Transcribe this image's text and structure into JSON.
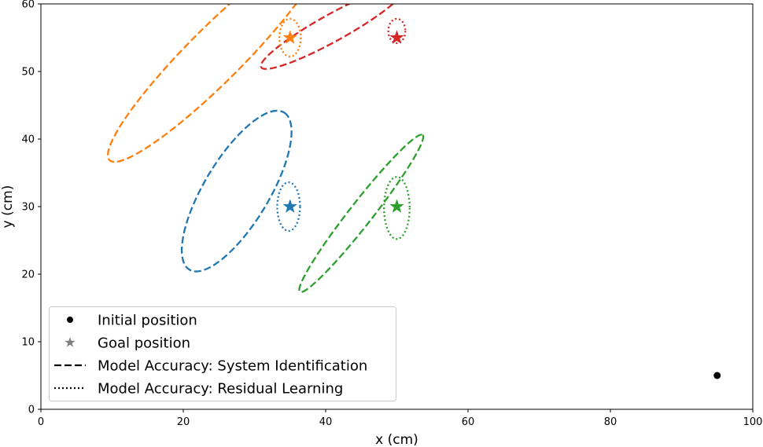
{
  "chart_data": {
    "type": "scatter",
    "title": "",
    "xlabel": "x (cm)",
    "ylabel": "y (cm)",
    "xlim": [
      0,
      100
    ],
    "ylim": [
      0,
      60
    ],
    "xticks": [
      0,
      20,
      40,
      60,
      80,
      100
    ],
    "yticks": [
      0,
      10,
      20,
      30,
      40,
      50,
      60
    ],
    "grid": false,
    "legend_position": "lower-left",
    "initial_position": {
      "x": 95,
      "y": 5,
      "color": "#000000"
    },
    "goals": [
      {
        "name": "goal-blue",
        "x": 35,
        "y": 30,
        "color": "#1f77b4"
      },
      {
        "name": "goal-orange",
        "x": 35,
        "y": 55,
        "color": "#ff7f0e"
      },
      {
        "name": "goal-green",
        "x": 50,
        "y": 30,
        "color": "#2ca02c"
      },
      {
        "name": "goal-red",
        "x": 50,
        "y": 55,
        "color": "#d62728"
      }
    ],
    "ellipses": [
      {
        "name": "sysid-blue",
        "style": "dashed",
        "color": "#1f77b4",
        "cx": 27.5,
        "cy": 32.3,
        "rx": 12.9,
        "ry": 4.8,
        "angle": 59
      },
      {
        "name": "sysid-orange",
        "style": "dashed",
        "color": "#ff7f0e",
        "cx": 24.5,
        "cy": 52.5,
        "rx": 21.0,
        "ry": 4.0,
        "angle": 45
      },
      {
        "name": "sysid-green",
        "style": "dashed",
        "color": "#2ca02c",
        "cx": 45.0,
        "cy": 29.0,
        "rx": 14.0,
        "ry": 1.7,
        "angle": 52
      },
      {
        "name": "sysid-red",
        "style": "dashed",
        "color": "#d62728",
        "cx": 41.0,
        "cy": 56.5,
        "rx": 11.5,
        "ry": 2.0,
        "angle": 29
      },
      {
        "name": "residual-blue",
        "style": "dotted",
        "color": "#1f77b4",
        "cx": 34.8,
        "cy": 30.0,
        "rx": 1.6,
        "ry": 3.6,
        "angle": 0
      },
      {
        "name": "residual-orange",
        "style": "dotted",
        "color": "#ff7f0e",
        "cx": 35.0,
        "cy": 55.0,
        "rx": 1.5,
        "ry": 2.8,
        "angle": 0
      },
      {
        "name": "residual-green",
        "style": "dotted",
        "color": "#2ca02c",
        "cx": 50.0,
        "cy": 29.8,
        "rx": 1.8,
        "ry": 4.6,
        "angle": 0
      },
      {
        "name": "residual-red",
        "style": "dotted",
        "color": "#d62728",
        "cx": 50.0,
        "cy": 56.0,
        "rx": 1.2,
        "ry": 1.8,
        "angle": 0
      }
    ],
    "legend": [
      {
        "name": "legend-initial",
        "label": "Initial position",
        "marker": "dot"
      },
      {
        "name": "legend-goal",
        "label": "Goal position",
        "marker": "star"
      },
      {
        "name": "legend-sysid",
        "label": "Model Accuracy: System Identification",
        "marker": "dashed"
      },
      {
        "name": "legend-residual",
        "label": "Model Accuracy: Residual Learning",
        "marker": "dotted"
      }
    ]
  }
}
